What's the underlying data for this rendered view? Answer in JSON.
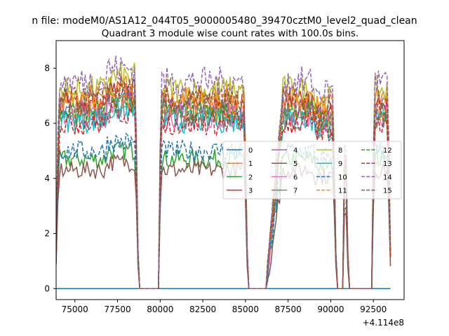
{
  "figure": {
    "suptitle": "n file: modeM0/AS1A12_044T05_9000005480_39470cztM0_level2_quad_clean",
    "offset_text": "+4.114e8"
  },
  "chart_data": {
    "type": "line",
    "title": "Quadrant 3 module wise count rates with 100.0s bins.",
    "xlabel": "",
    "ylabel": "",
    "x_offset": 411400000,
    "xlim": [
      73900,
      94300
    ],
    "ylim": [
      -0.4,
      9.0
    ],
    "xticks": [
      75000,
      77500,
      80000,
      82500,
      85000,
      87500,
      90000,
      92500
    ],
    "xtick_labels": [
      "75000",
      "77500",
      "80000",
      "82500",
      "85000",
      "87500",
      "90000",
      "92500"
    ],
    "yticks": [
      0,
      2,
      4,
      6,
      8
    ],
    "ytick_labels": [
      "0",
      "2",
      "4",
      "6",
      "8"
    ],
    "grid": false,
    "legend": {
      "placement": "center-right",
      "columns": 4
    },
    "x_start": 73900,
    "x_step": 100,
    "segments": [
      {
        "start": 73900,
        "end": 78700,
        "state": "on"
      },
      {
        "start": 78700,
        "end": 79900,
        "state": "off"
      },
      {
        "start": 79900,
        "end": 85100,
        "state": "on"
      },
      {
        "start": 85100,
        "end": 86200,
        "state": "off"
      },
      {
        "start": 86200,
        "end": 90300,
        "state": "on"
      },
      {
        "start": 90300,
        "end": 90700,
        "state": "off"
      },
      {
        "start": 90700,
        "end": 91000,
        "state": "on"
      },
      {
        "start": 91000,
        "end": 92400,
        "state": "off"
      },
      {
        "start": 92400,
        "end": 93500,
        "state": "on"
      }
    ],
    "series": [
      {
        "name": "0",
        "color": "#1f77b4",
        "dash": "solid",
        "level": 0.0
      },
      {
        "name": "1",
        "color": "#ff7f0e",
        "dash": "solid",
        "level": 6.9
      },
      {
        "name": "2",
        "color": "#2ca02c",
        "dash": "solid",
        "level": 4.7
      },
      {
        "name": "3",
        "color": "#d62728",
        "dash": "solid",
        "level": 6.7
      },
      {
        "name": "4",
        "color": "#9467bd",
        "dash": "solid",
        "level": 6.5
      },
      {
        "name": "5",
        "color": "#8c564b",
        "dash": "solid",
        "level": 4.3
      },
      {
        "name": "6",
        "color": "#e377c2",
        "dash": "solid",
        "level": 6.3
      },
      {
        "name": "7",
        "color": "#7f7f7f",
        "dash": "solid",
        "level": 6.2
      },
      {
        "name": "8",
        "color": "#bcbd22",
        "dash": "solid",
        "level": 7.2
      },
      {
        "name": "9",
        "color": "#17becf",
        "dash": "solid",
        "level": 6.1
      },
      {
        "name": "10",
        "color": "#1f77b4",
        "dash": "dashed",
        "level": 5.0
      },
      {
        "name": "11",
        "color": "#ff7f0e",
        "dash": "dashed",
        "level": 6.6
      },
      {
        "name": "12",
        "color": "#2ca02c",
        "dash": "dashed",
        "level": 6.4
      },
      {
        "name": "13",
        "color": "#d62728",
        "dash": "dashed",
        "level": 6.0
      },
      {
        "name": "14",
        "color": "#9467bd",
        "dash": "dashed",
        "level": 7.5
      },
      {
        "name": "15",
        "color": "#8c564b",
        "dash": "dashed",
        "level": 6.8
      }
    ]
  }
}
